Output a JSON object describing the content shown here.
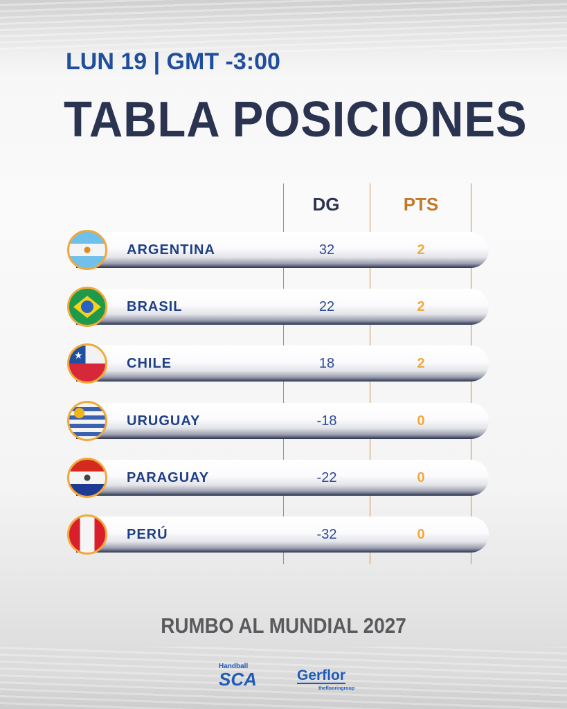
{
  "header": {
    "subtitle": "LUN 19 | GMT -3:00",
    "title": "TABLA POSICIONES"
  },
  "table": {
    "columns": [
      "DG",
      "PTS"
    ],
    "colors": {
      "name": "#1f3f85",
      "dg": "#2c4a97",
      "pts": "#f0a93a",
      "pts_header": "#c07a2a"
    },
    "rows": [
      {
        "team": "ARGENTINA",
        "flag": "argentina-flag",
        "dg": "32",
        "pts": "2"
      },
      {
        "team": "BRASIL",
        "flag": "brazil-flag",
        "dg": "22",
        "pts": "2"
      },
      {
        "team": "CHILE",
        "flag": "chile-flag",
        "dg": "18",
        "pts": "2"
      },
      {
        "team": "URUGUAY",
        "flag": "uruguay-flag",
        "dg": "-18",
        "pts": "0"
      },
      {
        "team": "PARAGUAY",
        "flag": "paraguay-flag",
        "dg": "-22",
        "pts": "0"
      },
      {
        "team": "PERÚ",
        "flag": "peru-flag",
        "dg": "-32",
        "pts": "0"
      }
    ]
  },
  "footer": {
    "text": "RUMBO AL MUNDIAL 2027"
  },
  "sponsors": {
    "sca_small": "Handball",
    "sca": "SCA",
    "gerflor": "Gerflor",
    "gerflor_tag": "theflooringroup"
  }
}
